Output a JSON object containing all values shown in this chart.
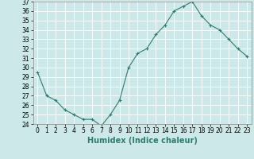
{
  "x": [
    0,
    1,
    2,
    3,
    4,
    5,
    6,
    7,
    8,
    9,
    10,
    11,
    12,
    13,
    14,
    15,
    16,
    17,
    18,
    19,
    20,
    21,
    22,
    23
  ],
  "y": [
    29.5,
    27.0,
    26.5,
    25.5,
    25.0,
    24.5,
    24.5,
    23.8,
    25.0,
    26.5,
    30.0,
    31.5,
    32.0,
    33.5,
    34.5,
    36.0,
    36.5,
    37.0,
    35.5,
    34.5,
    34.0,
    33.0,
    32.0,
    31.2
  ],
  "xlim": [
    -0.5,
    23.5
  ],
  "ylim": [
    24,
    37
  ],
  "yticks": [
    24,
    25,
    26,
    27,
    28,
    29,
    30,
    31,
    32,
    33,
    34,
    35,
    36,
    37
  ],
  "xticks": [
    0,
    1,
    2,
    3,
    4,
    5,
    6,
    7,
    8,
    9,
    10,
    11,
    12,
    13,
    14,
    15,
    16,
    17,
    18,
    19,
    20,
    21,
    22,
    23
  ],
  "xlabel": "Humidex (Indice chaleur)",
  "line_color": "#2e7d6e",
  "marker": "+",
  "bg_color": "#cce8e8",
  "grid_color": "#b8d8d8",
  "tick_label_fontsize": 5.5,
  "xlabel_fontsize": 7.0
}
